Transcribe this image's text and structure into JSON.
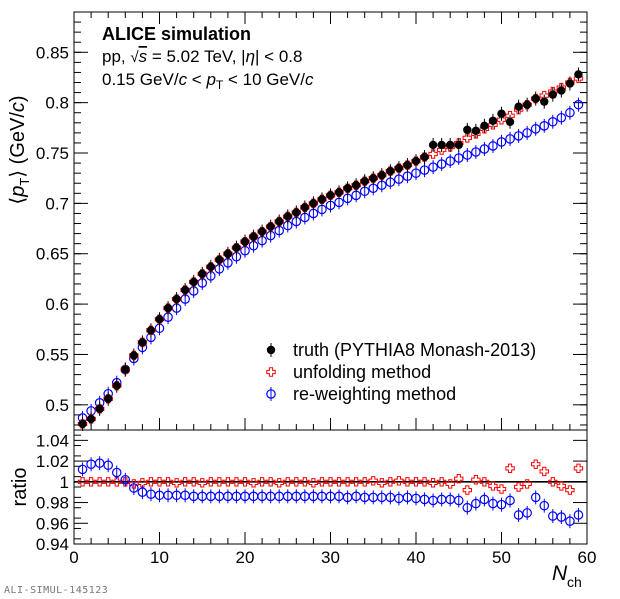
{
  "chart_data": [
    {
      "type": "scatter",
      "panel": "top",
      "ylabel": "⟨pT⟩ (GeV/c)",
      "xlim": [
        0,
        60
      ],
      "ylim": [
        0.475,
        0.89
      ],
      "yticks": [
        "0.5",
        "0.55",
        "0.6",
        "0.65",
        "0.7",
        "0.75",
        "0.8",
        "0.85"
      ],
      "annotation": {
        "line1": "ALICE simulation",
        "line2": "pp, √s = 5.02 TeV, |η| < 0.8",
        "line3": "0.15 GeV/c < pT < 10 GeV/c"
      },
      "legend_position": "bottom-right",
      "series": [
        {
          "name": "truth (PYTHIA8 Monash-2013)",
          "color": "#000000",
          "marker": "filled-circle",
          "x": [
            1,
            2,
            3,
            4,
            5,
            6,
            7,
            8,
            9,
            10,
            11,
            12,
            13,
            14,
            15,
            16,
            17,
            18,
            19,
            20,
            21,
            22,
            23,
            24,
            25,
            26,
            27,
            28,
            29,
            30,
            31,
            32,
            33,
            34,
            35,
            36,
            37,
            38,
            39,
            40,
            41,
            42,
            43,
            44,
            45,
            46,
            47,
            48,
            49,
            50,
            51,
            52,
            53,
            54,
            55,
            56,
            57,
            58,
            59
          ],
          "values": [
            0.481,
            0.486,
            0.496,
            0.506,
            0.519,
            0.535,
            0.549,
            0.562,
            0.574,
            0.585,
            0.596,
            0.605,
            0.614,
            0.622,
            0.63,
            0.637,
            0.644,
            0.65,
            0.656,
            0.662,
            0.667,
            0.672,
            0.677,
            0.682,
            0.687,
            0.691,
            0.696,
            0.7,
            0.704,
            0.708,
            0.711,
            0.715,
            0.718,
            0.722,
            0.725,
            0.728,
            0.732,
            0.735,
            0.738,
            0.742,
            0.746,
            0.758,
            0.758,
            0.758,
            0.758,
            0.773,
            0.772,
            0.777,
            0.782,
            0.789,
            0.781,
            0.796,
            0.798,
            0.804,
            0.801,
            0.808,
            0.812,
            0.819,
            0.828
          ]
        },
        {
          "name": "unfolding method",
          "color": "#ff0000",
          "marker": "open-cross",
          "x": [
            1,
            2,
            3,
            4,
            5,
            6,
            7,
            8,
            9,
            10,
            11,
            12,
            13,
            14,
            15,
            16,
            17,
            18,
            19,
            20,
            21,
            22,
            23,
            24,
            25,
            26,
            27,
            28,
            29,
            30,
            31,
            32,
            33,
            34,
            35,
            36,
            37,
            38,
            39,
            40,
            41,
            42,
            43,
            44,
            45,
            46,
            47,
            48,
            49,
            50,
            51,
            52,
            53,
            54,
            55,
            56,
            57,
            58,
            59
          ],
          "values": [
            0.481,
            0.486,
            0.496,
            0.506,
            0.519,
            0.535,
            0.549,
            0.562,
            0.574,
            0.585,
            0.596,
            0.605,
            0.614,
            0.622,
            0.63,
            0.637,
            0.644,
            0.65,
            0.656,
            0.662,
            0.667,
            0.672,
            0.677,
            0.682,
            0.687,
            0.691,
            0.696,
            0.7,
            0.704,
            0.708,
            0.711,
            0.715,
            0.718,
            0.722,
            0.725,
            0.728,
            0.732,
            0.735,
            0.738,
            0.742,
            0.746,
            0.749,
            0.753,
            0.756,
            0.76,
            0.765,
            0.769,
            0.774,
            0.778,
            0.783,
            0.787,
            0.793,
            0.798,
            0.804,
            0.807,
            0.811,
            0.815,
            0.82,
            0.824
          ]
        },
        {
          "name": "re-weighting method",
          "color": "#0000ff",
          "marker": "open-circle",
          "x": [
            1,
            2,
            3,
            4,
            5,
            6,
            7,
            8,
            9,
            10,
            11,
            12,
            13,
            14,
            15,
            16,
            17,
            18,
            19,
            20,
            21,
            22,
            23,
            24,
            25,
            26,
            27,
            28,
            29,
            30,
            31,
            32,
            33,
            34,
            35,
            36,
            37,
            38,
            39,
            40,
            41,
            42,
            43,
            44,
            45,
            46,
            47,
            48,
            49,
            50,
            51,
            52,
            53,
            54,
            55,
            56,
            57,
            58,
            59
          ],
          "values": [
            0.487,
            0.494,
            0.502,
            0.511,
            0.522,
            0.535,
            0.546,
            0.557,
            0.567,
            0.576,
            0.587,
            0.596,
            0.605,
            0.613,
            0.621,
            0.628,
            0.635,
            0.641,
            0.647,
            0.653,
            0.658,
            0.663,
            0.668,
            0.673,
            0.678,
            0.682,
            0.686,
            0.69,
            0.694,
            0.698,
            0.701,
            0.705,
            0.708,
            0.712,
            0.715,
            0.718,
            0.721,
            0.724,
            0.727,
            0.73,
            0.733,
            0.736,
            0.739,
            0.742,
            0.745,
            0.748,
            0.751,
            0.754,
            0.757,
            0.761,
            0.764,
            0.767,
            0.77,
            0.774,
            0.777,
            0.781,
            0.785,
            0.79,
            0.798
          ]
        }
      ]
    },
    {
      "type": "scatter",
      "panel": "bottom",
      "xlabel": "Nch",
      "ylabel": "ratio",
      "xlim": [
        0,
        60
      ],
      "ylim": [
        0.94,
        1.05
      ],
      "xticks": [
        "0",
        "10",
        "20",
        "30",
        "40",
        "50",
        "60"
      ],
      "yticks": [
        "0.94",
        "0.96",
        "0.98",
        "1",
        "1.02",
        "1.04"
      ],
      "reference_line": 1.0,
      "series": [
        {
          "name": "unfolding method",
          "color": "#ff0000",
          "marker": "open-cross",
          "x": [
            1,
            2,
            3,
            4,
            5,
            6,
            7,
            8,
            9,
            10,
            11,
            12,
            13,
            14,
            15,
            16,
            17,
            18,
            19,
            20,
            21,
            22,
            23,
            24,
            25,
            26,
            27,
            28,
            29,
            30,
            31,
            32,
            33,
            34,
            35,
            36,
            37,
            38,
            39,
            40,
            41,
            42,
            43,
            44,
            45,
            46,
            47,
            48,
            49,
            50,
            51,
            52,
            53,
            54,
            55,
            56,
            57,
            58,
            59
          ],
          "values": [
            1.0,
            1.0,
            1.0,
            1.0,
            1.0,
            1.0,
            0.998,
            0.999,
            1.0,
            1.0,
            1.0,
            0.999,
            1.0,
            1.0,
            0.999,
            1.0,
            1.0,
            1.0,
            1.0,
            1.0,
            0.999,
            1.0,
            1.0,
            0.999,
            1.0,
            1.0,
            1.0,
            0.999,
            1.0,
            1.0,
            1.0,
            1.0,
            1.0,
            1.0,
            1.001,
            0.999,
            1.0,
            1.001,
            1.0,
            1.0,
            1.0,
            0.999,
            1.0,
            0.998,
            1.003,
            0.992,
            1.002,
            1.0,
            0.996,
            0.993,
            1.013,
            0.995,
            0.998,
            1.017,
            1.01,
            1.0,
            0.996,
            0.992,
            1.013
          ]
        },
        {
          "name": "re-weighting method",
          "color": "#0000ff",
          "marker": "open-circle",
          "x": [
            1,
            2,
            3,
            4,
            5,
            6,
            7,
            8,
            9,
            10,
            11,
            12,
            13,
            14,
            15,
            16,
            17,
            18,
            19,
            20,
            21,
            22,
            23,
            24,
            25,
            26,
            27,
            28,
            29,
            30,
            31,
            32,
            33,
            34,
            35,
            36,
            37,
            38,
            39,
            40,
            41,
            42,
            43,
            44,
            45,
            46,
            47,
            48,
            49,
            50,
            51,
            52,
            53,
            54,
            55,
            56,
            57,
            58,
            59
          ],
          "values": [
            1.012,
            1.017,
            1.018,
            1.016,
            1.009,
            1.002,
            0.994,
            0.99,
            0.988,
            0.987,
            0.987,
            0.987,
            0.987,
            0.986,
            0.986,
            0.986,
            0.986,
            0.986,
            0.986,
            0.986,
            0.986,
            0.986,
            0.986,
            0.986,
            0.986,
            0.986,
            0.986,
            0.986,
            0.986,
            0.986,
            0.986,
            0.985,
            0.986,
            0.985,
            0.985,
            0.985,
            0.985,
            0.984,
            0.985,
            0.984,
            0.983,
            0.982,
            0.983,
            0.983,
            0.982,
            0.975,
            0.979,
            0.983,
            0.979,
            0.978,
            0.982,
            0.968,
            0.97,
            0.985,
            0.977,
            0.967,
            0.966,
            0.962,
            0.968
          ]
        }
      ]
    }
  ],
  "footer": "ALI-SIMUL-145123"
}
